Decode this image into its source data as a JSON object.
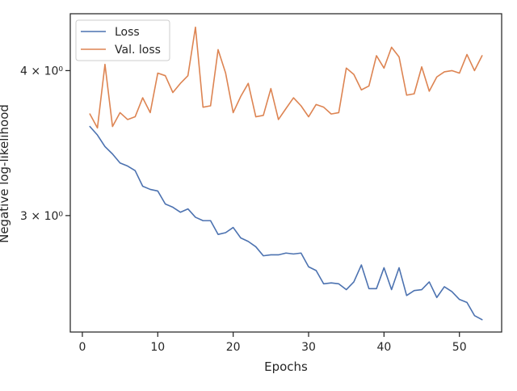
{
  "chart_data": {
    "type": "line",
    "xlabel": "Epochs",
    "ylabel": "Negative log-likelihood",
    "yscale": "log",
    "xlim": [
      -1.6,
      55.6
    ],
    "ylim": [
      2.381,
      4.478
    ],
    "x_ticks": [
      0,
      10,
      20,
      30,
      40,
      50
    ],
    "x_tick_labels": [
      "0",
      "10",
      "20",
      "30",
      "40",
      "50"
    ],
    "y_ticks": [
      3,
      4
    ],
    "y_tick_labels": [
      "3 × 10⁰",
      "4 × 10⁰"
    ],
    "grid": false,
    "legend": "upper left",
    "series": [
      {
        "name": "Loss",
        "color": "#4c72b0",
        "x": [
          1,
          2,
          3,
          4,
          5,
          6,
          7,
          8,
          9,
          10,
          11,
          12,
          13,
          14,
          15,
          16,
          17,
          18,
          19,
          20,
          21,
          22,
          23,
          24,
          25,
          26,
          27,
          28,
          29,
          30,
          31,
          32,
          33,
          34,
          35,
          36,
          37,
          38,
          39,
          40,
          41,
          42,
          43,
          44,
          45,
          46,
          47,
          48,
          49,
          50,
          51,
          52,
          53
        ],
        "values": [
          3.58,
          3.52,
          3.44,
          3.39,
          3.33,
          3.31,
          3.28,
          3.18,
          3.16,
          3.15,
          3.07,
          3.05,
          3.02,
          3.04,
          2.99,
          2.97,
          2.97,
          2.89,
          2.9,
          2.93,
          2.87,
          2.85,
          2.82,
          2.77,
          2.775,
          2.775,
          2.785,
          2.78,
          2.785,
          2.71,
          2.69,
          2.62,
          2.625,
          2.62,
          2.59,
          2.63,
          2.72,
          2.595,
          2.595,
          2.705,
          2.59,
          2.705,
          2.56,
          2.585,
          2.59,
          2.63,
          2.55,
          2.605,
          2.58,
          2.54,
          2.525,
          2.46,
          2.44
        ]
      },
      {
        "name": "Val. loss",
        "color": "#dd8452",
        "x": [
          1,
          2,
          3,
          4,
          5,
          6,
          7,
          8,
          9,
          10,
          11,
          12,
          13,
          14,
          15,
          16,
          17,
          18,
          19,
          20,
          21,
          22,
          23,
          24,
          25,
          26,
          27,
          28,
          29,
          30,
          31,
          32,
          33,
          34,
          35,
          36,
          37,
          38,
          39,
          40,
          41,
          42,
          43,
          44,
          45,
          46,
          47,
          48,
          49,
          50,
          51,
          52,
          53
        ],
        "values": [
          3.67,
          3.57,
          4.05,
          3.58,
          3.68,
          3.63,
          3.65,
          3.79,
          3.68,
          3.98,
          3.96,
          3.83,
          3.9,
          3.96,
          4.36,
          3.72,
          3.73,
          4.17,
          3.98,
          3.68,
          3.8,
          3.9,
          3.65,
          3.66,
          3.86,
          3.63,
          3.71,
          3.79,
          3.73,
          3.65,
          3.74,
          3.72,
          3.67,
          3.68,
          4.02,
          3.97,
          3.85,
          3.88,
          4.12,
          4.02,
          4.19,
          4.11,
          3.81,
          3.82,
          4.03,
          3.84,
          3.95,
          3.99,
          4.0,
          3.98,
          4.13,
          4.0,
          4.12
        ]
      }
    ]
  }
}
